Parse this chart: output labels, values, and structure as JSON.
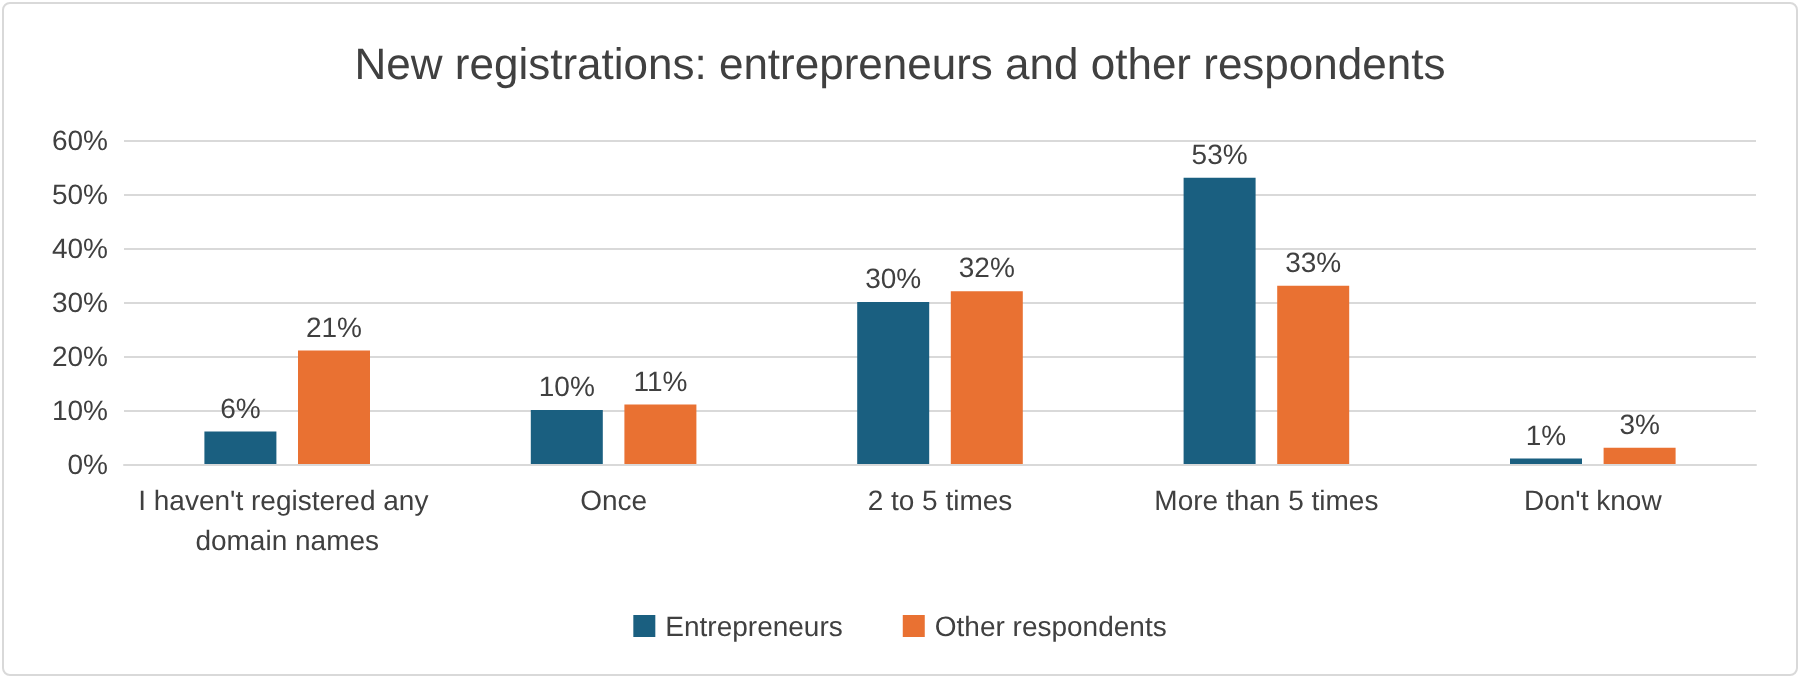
{
  "chart_data": {
    "type": "bar",
    "title": "New registrations: entrepreneurs and other respondents",
    "categories": [
      "I haven't registered any domain names",
      "Once",
      "2 to 5 times",
      "More than 5 times",
      "Don't know"
    ],
    "series": [
      {
        "name": "Entrepreneurs",
        "color": "#1a5f80",
        "values": [
          6,
          10,
          30,
          53,
          1
        ],
        "value_labels": [
          "6%",
          "10%",
          "30%",
          "53%",
          "1%"
        ]
      },
      {
        "name": "Other respondents",
        "color": "#e97132",
        "values": [
          21,
          11,
          32,
          33,
          3
        ],
        "value_labels": [
          "21%",
          "11%",
          "32%",
          "33%",
          "3%"
        ]
      }
    ],
    "ylim": [
      0,
      60
    ],
    "yticks": [
      {
        "value": 0,
        "label": "0%"
      },
      {
        "value": 10,
        "label": "10%"
      },
      {
        "value": 20,
        "label": "20%"
      },
      {
        "value": 30,
        "label": "30%"
      },
      {
        "value": 40,
        "label": "40%"
      },
      {
        "value": 50,
        "label": "50%"
      },
      {
        "value": 60,
        "label": "60%"
      }
    ],
    "grid": "y",
    "legend": "bottom"
  }
}
